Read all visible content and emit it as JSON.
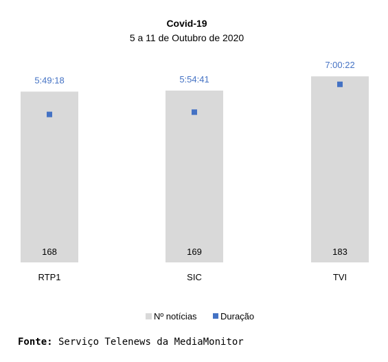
{
  "chart_data": {
    "type": "bar",
    "title": "Covid-19",
    "subtitle": "5 a 11 de Outubro de 2020",
    "categories": [
      "RTP1",
      "SIC",
      "TVI"
    ],
    "series": [
      {
        "name": "Nº notícias",
        "kind": "bar",
        "values": [
          168,
          169,
          183
        ],
        "color": "#d9d9d9"
      },
      {
        "name": "Duração",
        "kind": "marker",
        "values": [
          "5:49:18",
          "5:54:41",
          "7:00:22"
        ],
        "color": "#4472c4"
      }
    ],
    "ylim": [
      0,
      200
    ],
    "y2lim_hours": [
      0,
      8
    ],
    "grid": false,
    "legend_position": "bottom"
  },
  "source": {
    "label": "Fonte:",
    "text": " Serviço Telenews da MediaMonitor"
  }
}
